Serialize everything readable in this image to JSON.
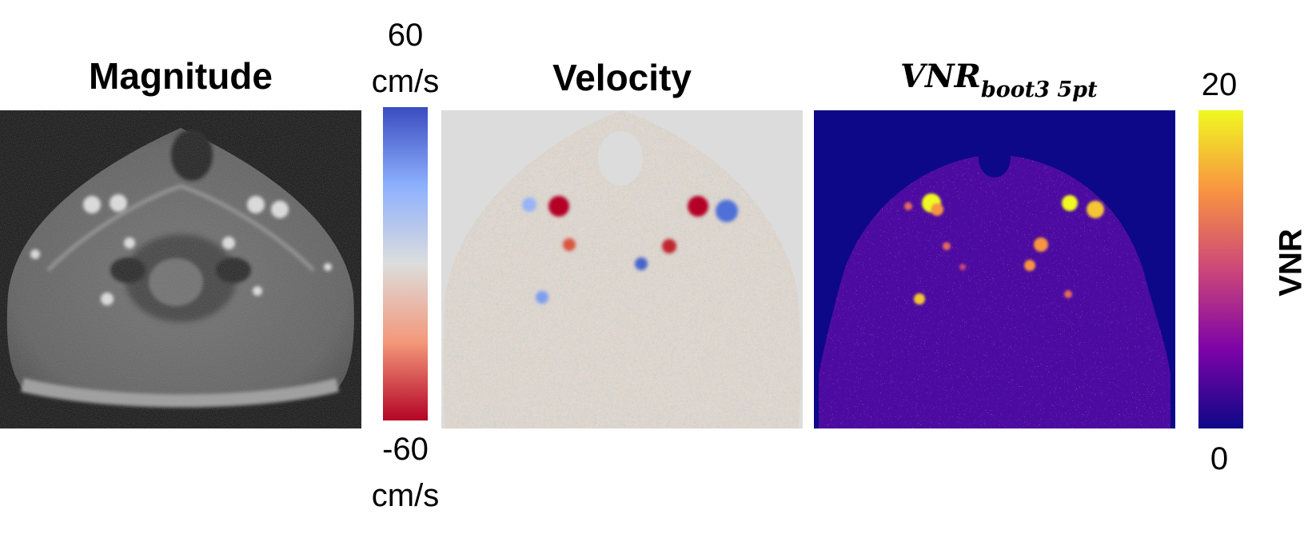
{
  "magnitude": {
    "title": "Magnitude"
  },
  "velocity": {
    "title": "Velocity",
    "colorbar": {
      "max_value": "60",
      "max_unit": "cm/s",
      "min_value": "-60",
      "min_unit": "cm/s",
      "colors": [
        "#b40426",
        "#f4987a",
        "#dcdddd",
        "#8db0fe",
        "#3b4cc0"
      ]
    },
    "background_color": "#dcdcdc"
  },
  "vnr": {
    "title_main": "VNR",
    "title_sub": "boot3 5pt",
    "colorbar": {
      "max_value": "20",
      "min_value": "0",
      "label": "VNR",
      "colors": [
        "#0d0887",
        "#7e03a8",
        "#cc4778",
        "#f89540",
        "#f0f921"
      ]
    },
    "background_color": "#0d0887"
  }
}
